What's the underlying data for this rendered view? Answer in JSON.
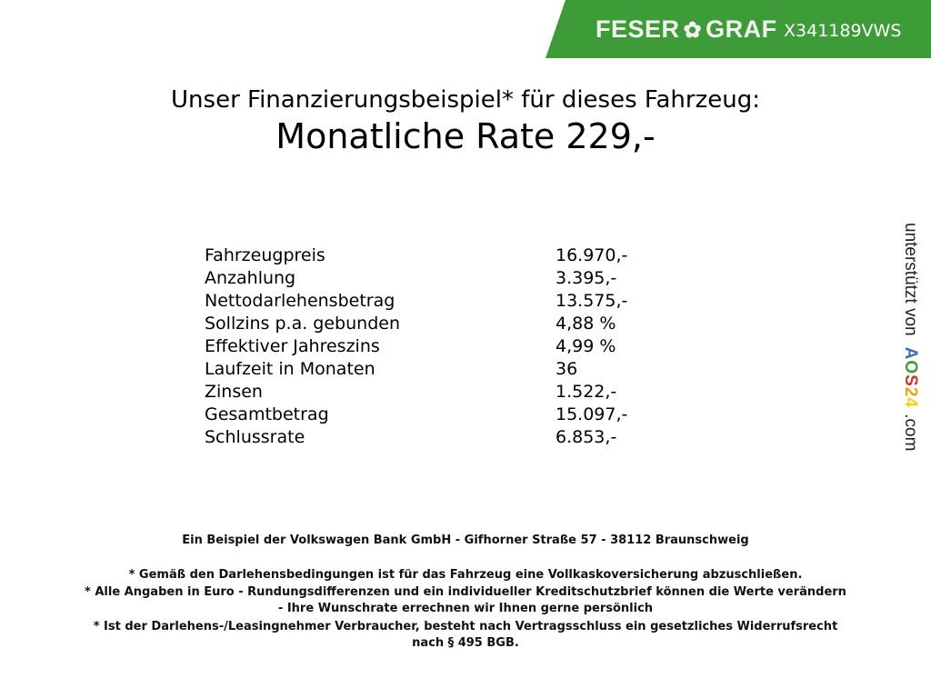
{
  "header": {
    "logo_text": "FESER ✿ GRAF",
    "vehicle_id": "X341189VWS",
    "banner_color": "#3d9b38"
  },
  "title": "Unser Finanzierungsbeispiel* für dieses Fahrzeug:",
  "rate": "Monatliche Rate 229,-",
  "rows": [
    {
      "label": "Fahrzeugpreis",
      "value": "16.970,-"
    },
    {
      "label": "Anzahlung",
      "value": "3.395,-"
    },
    {
      "label": "Nettodarlehensbetrag",
      "value": "13.575,-"
    },
    {
      "label": "Sollzins p.a. gebunden",
      "value": "4,88 %"
    },
    {
      "label": "Effektiver Jahreszins",
      "value": "4,99 %"
    },
    {
      "label": "Laufzeit in Monaten",
      "value": "36"
    },
    {
      "label": "Zinsen",
      "value": "1.522,-"
    },
    {
      "label": "Gesamtbetrag",
      "value": "15.097,-"
    },
    {
      "label": "Schlussrate",
      "value": "6.853,-"
    }
  ],
  "side": {
    "prefix": "unterstützt von",
    "brand": [
      "A",
      "O",
      "S",
      "2",
      "4"
    ],
    "suffix": ".com",
    "brand_colors": [
      "#3a6fb5",
      "#3d9b38",
      "#d2332b",
      "#e8a317",
      "#f0d020"
    ]
  },
  "footer": {
    "bank": "Ein Beispiel der Volkswagen Bank GmbH - Gifhorner Straße 57 - 38112 Braunschweig",
    "note1": "* Gemäß den Darlehensbedingungen ist für das Fahrzeug eine Vollkaskoversicherung abzuschließen.",
    "note2a": "* Alle Angaben in Euro - Rundungsdifferenzen und ein individueller Kreditschutzbrief können die Werte verändern",
    "note2b": "- Ihre Wunschrate errechnen wir Ihnen gerne persönlich",
    "note3a": "* Ist der Darlehens-/Leasingnehmer Verbraucher, besteht nach Vertragsschluss ein gesetzliches Widerrufsrecht",
    "note3b": "nach § 495 BGB."
  }
}
